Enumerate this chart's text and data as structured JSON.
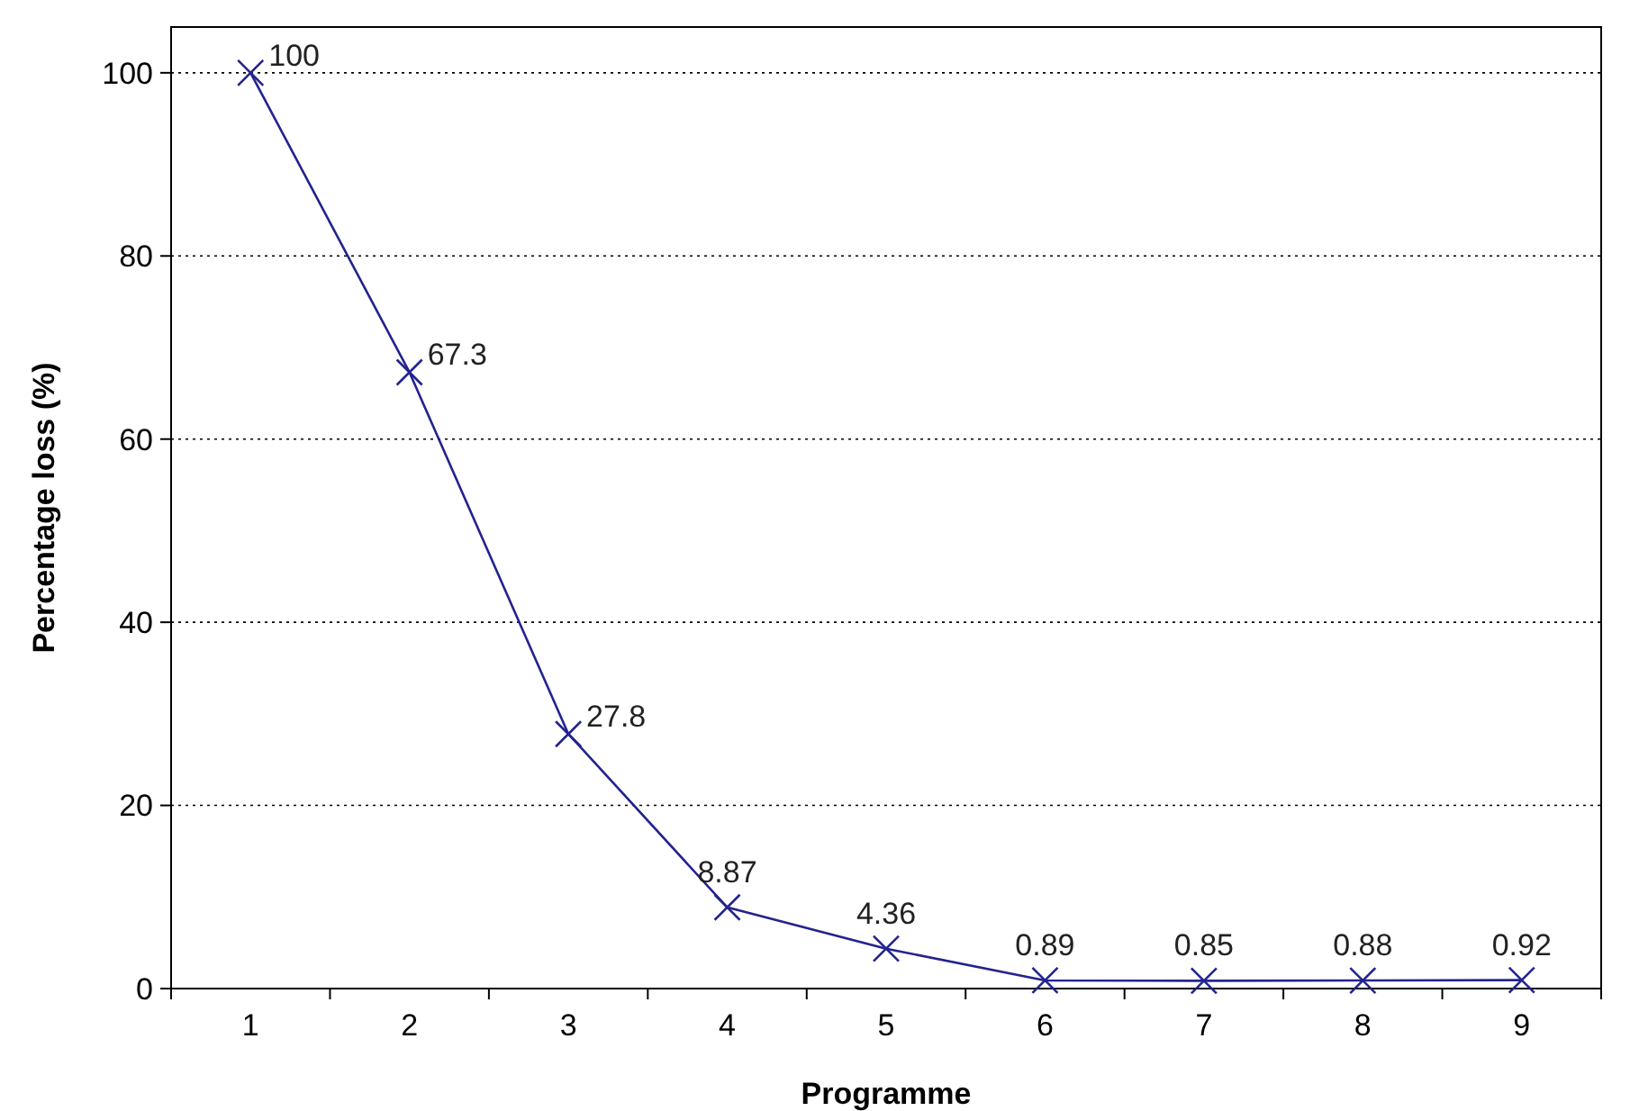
{
  "chart_data": {
    "type": "line",
    "xlabel": "Programme",
    "ylabel": "Percentage loss (%)",
    "categories": [
      "1",
      "2",
      "3",
      "4",
      "5",
      "6",
      "7",
      "8",
      "9"
    ],
    "series": [
      {
        "color": "#23238f",
        "values": [
          100,
          67.3,
          27.8,
          8.87,
          4.36,
          0.89,
          0.85,
          0.88,
          0.92
        ]
      }
    ],
    "ylim": [
      0,
      105
    ],
    "yticks": [
      0,
      20,
      40,
      60,
      80,
      100
    ],
    "grid": "y",
    "marker": "cross",
    "line_style": "solid",
    "data_labels": true
  }
}
